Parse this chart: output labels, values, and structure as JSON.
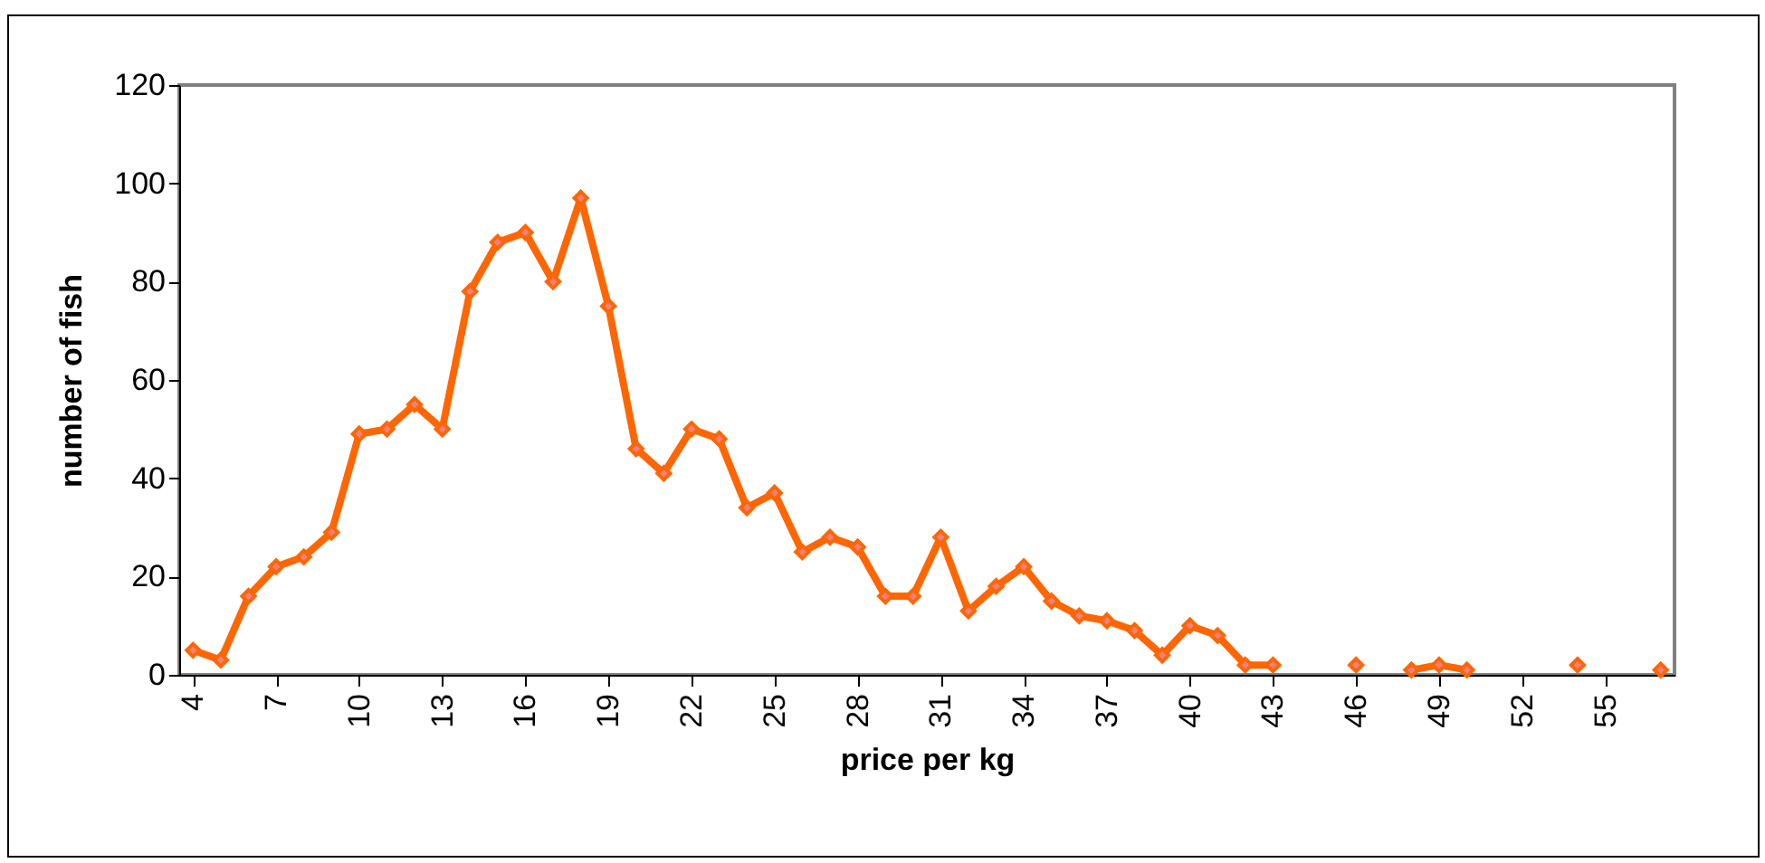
{
  "chart_data": {
    "type": "line",
    "xlabel": "price per kg",
    "ylabel": "number of fish",
    "x": [
      4,
      5,
      6,
      7,
      8,
      9,
      10,
      11,
      12,
      13,
      14,
      15,
      16,
      17,
      18,
      19,
      20,
      21,
      22,
      23,
      24,
      25,
      26,
      27,
      28,
      29,
      30,
      31,
      32,
      33,
      34,
      35,
      36,
      37,
      38,
      39,
      40,
      41,
      42,
      43,
      44,
      45,
      46,
      47,
      48,
      49,
      50,
      51,
      52,
      53,
      54,
      55,
      56,
      57
    ],
    "series": [
      {
        "color": "#ff6600",
        "values": [
          5,
          3,
          16,
          22,
          24,
          29,
          49,
          50,
          55,
          50,
          78,
          88,
          90,
          80,
          97,
          75,
          46,
          41,
          50,
          48,
          34,
          37,
          25,
          28,
          26,
          16,
          16,
          28,
          13,
          18,
          22,
          15,
          12,
          11,
          9,
          4,
          10,
          8,
          2,
          2,
          null,
          null,
          2,
          null,
          1,
          2,
          1,
          null,
          null,
          null,
          2,
          null,
          null,
          1
        ]
      }
    ],
    "xlim": [
      3.5,
      57.5
    ],
    "xticks": [
      4,
      7,
      10,
      13,
      16,
      19,
      22,
      25,
      28,
      31,
      34,
      37,
      40,
      43,
      46,
      49,
      52,
      55
    ],
    "ylim": [
      0,
      120
    ],
    "yticks": [
      0,
      20,
      40,
      60,
      80,
      100,
      120
    ],
    "grid": false,
    "marker": "diamond",
    "line_style": "solid"
  }
}
